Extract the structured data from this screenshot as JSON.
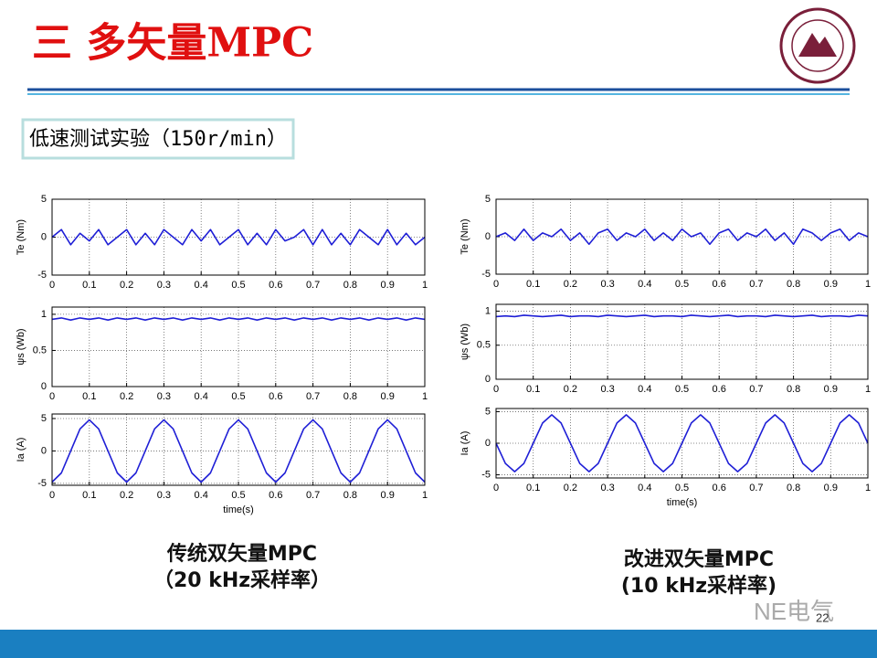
{
  "title": "三 多矢量MPC",
  "subtitle": "低速测试实验（150r/min）",
  "captions": [
    [
      "传统双矢量MPC",
      "（20 kHz采样率）"
    ],
    [
      "改进双矢量MPC",
      "(10 kHz采样率)"
    ]
  ],
  "page_number": "22",
  "watermark": "NE电气",
  "chart_data": [
    {
      "type": "line",
      "ylabel": "Te (Nm)",
      "color": "#1f1fd6",
      "grid": true,
      "xlim": [
        0,
        1
      ],
      "ylim": [
        -5,
        5
      ],
      "xticks": [
        0,
        0.1,
        0.2,
        0.3,
        0.4,
        0.5,
        0.6,
        0.7,
        0.8,
        0.9,
        1
      ],
      "yticks": [
        -5,
        0,
        5
      ],
      "x": [
        0,
        0.025,
        0.05,
        0.075,
        0.1,
        0.125,
        0.15,
        0.175,
        0.2,
        0.225,
        0.25,
        0.275,
        0.3,
        0.325,
        0.35,
        0.375,
        0.4,
        0.425,
        0.45,
        0.475,
        0.5,
        0.525,
        0.55,
        0.575,
        0.6,
        0.625,
        0.65,
        0.675,
        0.7,
        0.725,
        0.75,
        0.775,
        0.8,
        0.825,
        0.85,
        0.875,
        0.9,
        0.925,
        0.95,
        0.975,
        1
      ],
      "values": [
        0,
        1,
        -1,
        0.5,
        -0.5,
        1,
        -1,
        0,
        1,
        -1,
        0.5,
        -1,
        1,
        0,
        -1,
        1,
        -0.5,
        1,
        -1,
        0,
        1,
        -1,
        0.5,
        -1,
        1,
        -0.5,
        0,
        1,
        -1,
        1,
        -1,
        0.5,
        -1,
        1,
        0,
        -1,
        1,
        -1,
        0.5,
        -1,
        0
      ]
    },
    {
      "type": "line",
      "ylabel": "ψs (Wb)",
      "color": "#1f1fd6",
      "grid": true,
      "xlim": [
        0,
        1
      ],
      "ylim": [
        0,
        1.1
      ],
      "xticks": [
        0,
        0.1,
        0.2,
        0.3,
        0.4,
        0.5,
        0.6,
        0.7,
        0.8,
        0.9,
        1
      ],
      "yticks": [
        0,
        0.5,
        1
      ],
      "x": [
        0,
        0.025,
        0.05,
        0.075,
        0.1,
        0.125,
        0.15,
        0.175,
        0.2,
        0.225,
        0.25,
        0.275,
        0.3,
        0.325,
        0.35,
        0.375,
        0.4,
        0.425,
        0.45,
        0.475,
        0.5,
        0.525,
        0.55,
        0.575,
        0.6,
        0.625,
        0.65,
        0.675,
        0.7,
        0.725,
        0.75,
        0.775,
        0.8,
        0.825,
        0.85,
        0.875,
        0.9,
        0.925,
        0.95,
        0.975,
        1
      ],
      "values": [
        0.93,
        0.95,
        0.92,
        0.95,
        0.93,
        0.95,
        0.92,
        0.95,
        0.93,
        0.95,
        0.92,
        0.95,
        0.93,
        0.95,
        0.92,
        0.95,
        0.93,
        0.95,
        0.92,
        0.95,
        0.93,
        0.95,
        0.92,
        0.95,
        0.93,
        0.95,
        0.92,
        0.95,
        0.93,
        0.95,
        0.92,
        0.95,
        0.93,
        0.95,
        0.92,
        0.95,
        0.93,
        0.95,
        0.92,
        0.95,
        0.93
      ]
    },
    {
      "type": "line",
      "ylabel": "Ia (A)",
      "xlabel": "time(s)",
      "color": "#1f1fd6",
      "grid": true,
      "xlim": [
        0,
        1
      ],
      "ylim": [
        -5.3,
        5.7
      ],
      "xticks": [
        0,
        0.1,
        0.2,
        0.3,
        0.4,
        0.5,
        0.6,
        0.7,
        0.8,
        0.9,
        1
      ],
      "yticks": [
        -5,
        0,
        5
      ],
      "x": [
        0,
        0.025,
        0.05,
        0.075,
        0.1,
        0.125,
        0.15,
        0.175,
        0.2,
        0.225,
        0.25,
        0.275,
        0.3,
        0.325,
        0.35,
        0.375,
        0.4,
        0.425,
        0.45,
        0.475,
        0.5,
        0.525,
        0.55,
        0.575,
        0.6,
        0.625,
        0.65,
        0.675,
        0.7,
        0.725,
        0.75,
        0.775,
        0.8,
        0.825,
        0.85,
        0.875,
        0.9,
        0.925,
        0.95,
        0.975,
        1
      ],
      "values": [
        -4.8,
        -3.4,
        0,
        3.4,
        4.8,
        3.4,
        0,
        -3.4,
        -4.8,
        -3.4,
        0,
        3.4,
        4.8,
        3.4,
        0,
        -3.4,
        -4.8,
        -3.4,
        0,
        3.4,
        4.8,
        3.4,
        0,
        -3.4,
        -4.8,
        -3.4,
        0,
        3.4,
        4.8,
        3.4,
        0,
        -3.4,
        -4.8,
        -3.4,
        0,
        3.4,
        4.8,
        3.4,
        0,
        -3.4,
        -4.8
      ]
    },
    {
      "type": "line",
      "ylabel": "Te (Nm)",
      "color": "#1f1fd6",
      "grid": true,
      "xlim": [
        0,
        1
      ],
      "ylim": [
        -5,
        5
      ],
      "xticks": [
        0,
        0.1,
        0.2,
        0.3,
        0.4,
        0.5,
        0.6,
        0.7,
        0.8,
        0.9,
        1
      ],
      "yticks": [
        -5,
        0,
        5
      ],
      "x": [
        0,
        0.025,
        0.05,
        0.075,
        0.1,
        0.125,
        0.15,
        0.175,
        0.2,
        0.225,
        0.25,
        0.275,
        0.3,
        0.325,
        0.35,
        0.375,
        0.4,
        0.425,
        0.45,
        0.475,
        0.5,
        0.525,
        0.55,
        0.575,
        0.6,
        0.625,
        0.65,
        0.675,
        0.7,
        0.725,
        0.75,
        0.775,
        0.8,
        0.825,
        0.85,
        0.875,
        0.9,
        0.925,
        0.95,
        0.975,
        1
      ],
      "values": [
        0,
        0.5,
        -0.5,
        1,
        -0.5,
        0.5,
        0,
        1,
        -0.5,
        0.5,
        -1,
        0.5,
        1,
        -0.5,
        0.5,
        0,
        1,
        -0.5,
        0.5,
        -0.5,
        1,
        0,
        0.5,
        -1,
        0.5,
        1,
        -0.5,
        0.5,
        0,
        1,
        -0.5,
        0.5,
        -1,
        1,
        0.5,
        -0.5,
        0.5,
        1,
        -0.5,
        0.5,
        0
      ]
    },
    {
      "type": "line",
      "ylabel": "ψs (Wb)",
      "color": "#1f1fd6",
      "grid": true,
      "xlim": [
        0,
        1
      ],
      "ylim": [
        0,
        1.1
      ],
      "xticks": [
        0,
        0.1,
        0.2,
        0.3,
        0.4,
        0.5,
        0.6,
        0.7,
        0.8,
        0.9,
        1
      ],
      "yticks": [
        0,
        0.5,
        1
      ],
      "x": [
        0,
        0.025,
        0.05,
        0.075,
        0.1,
        0.125,
        0.15,
        0.175,
        0.2,
        0.225,
        0.25,
        0.275,
        0.3,
        0.325,
        0.35,
        0.375,
        0.4,
        0.425,
        0.45,
        0.475,
        0.5,
        0.525,
        0.55,
        0.575,
        0.6,
        0.625,
        0.65,
        0.675,
        0.7,
        0.725,
        0.75,
        0.775,
        0.8,
        0.825,
        0.85,
        0.875,
        0.9,
        0.925,
        0.95,
        0.975,
        1
      ],
      "values": [
        0.92,
        0.93,
        0.92,
        0.94,
        0.93,
        0.92,
        0.93,
        0.94,
        0.92,
        0.93,
        0.93,
        0.92,
        0.94,
        0.93,
        0.92,
        0.93,
        0.94,
        0.92,
        0.93,
        0.93,
        0.92,
        0.94,
        0.93,
        0.92,
        0.93,
        0.94,
        0.92,
        0.93,
        0.93,
        0.92,
        0.94,
        0.93,
        0.92,
        0.93,
        0.94,
        0.92,
        0.93,
        0.93,
        0.92,
        0.94,
        0.93
      ]
    },
    {
      "type": "line",
      "ylabel": "Ia (A)",
      "xlabel": "time(s)",
      "color": "#1f1fd6",
      "grid": true,
      "xlim": [
        0,
        1
      ],
      "ylim": [
        -5.5,
        5.5
      ],
      "xticks": [
        0,
        0.1,
        0.2,
        0.3,
        0.4,
        0.5,
        0.6,
        0.7,
        0.8,
        0.9,
        1
      ],
      "yticks": [
        -5,
        0,
        5
      ],
      "x": [
        0,
        0.025,
        0.05,
        0.075,
        0.1,
        0.125,
        0.15,
        0.175,
        0.2,
        0.225,
        0.25,
        0.275,
        0.3,
        0.325,
        0.35,
        0.375,
        0.4,
        0.425,
        0.45,
        0.475,
        0.5,
        0.525,
        0.55,
        0.575,
        0.6,
        0.625,
        0.65,
        0.675,
        0.7,
        0.725,
        0.75,
        0.775,
        0.8,
        0.825,
        0.85,
        0.875,
        0.9,
        0.925,
        0.95,
        0.975,
        1
      ],
      "values": [
        0,
        -3.2,
        -4.5,
        -3.2,
        0,
        3.2,
        4.5,
        3.2,
        0,
        -3.2,
        -4.5,
        -3.2,
        0,
        3.2,
        4.5,
        3.2,
        0,
        -3.2,
        -4.5,
        -3.2,
        0,
        3.2,
        4.5,
        3.2,
        0,
        -3.2,
        -4.5,
        -3.2,
        0,
        3.2,
        4.5,
        3.2,
        0,
        -3.2,
        -4.5,
        -3.2,
        0,
        3.2,
        4.5,
        3.2,
        0
      ]
    }
  ]
}
